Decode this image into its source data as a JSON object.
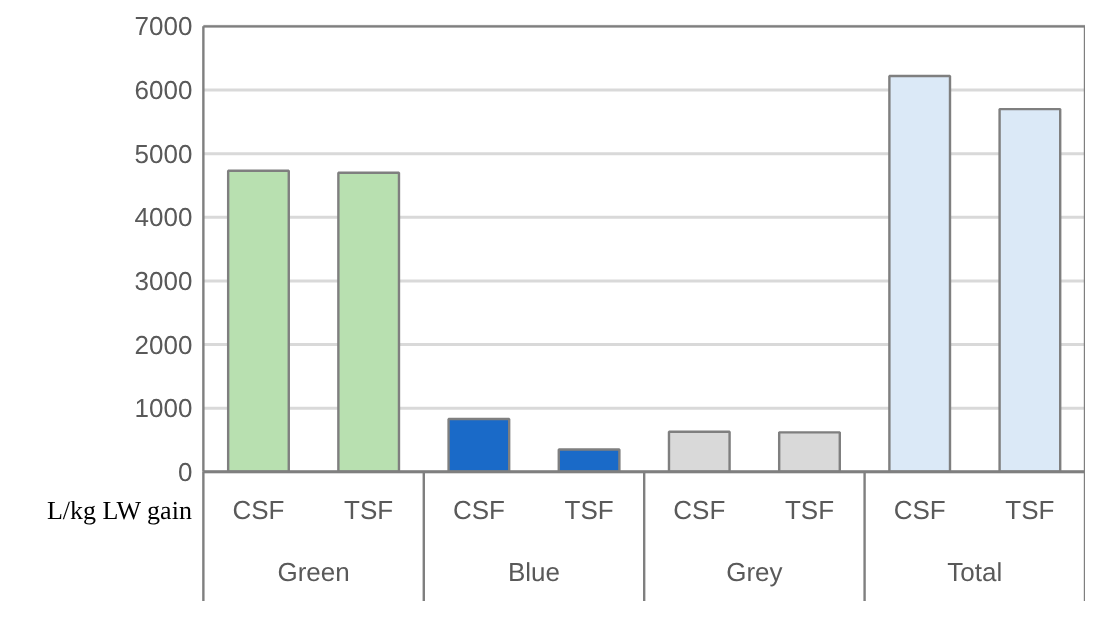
{
  "chart_data": {
    "type": "bar",
    "ylabel": "L/kg LW gain",
    "categories": [
      "CSF",
      "TSF",
      "CSF",
      "TSF",
      "CSF",
      "TSF",
      "CSF",
      "TSF"
    ],
    "values": [
      4730,
      4700,
      830,
      350,
      630,
      620,
      6220,
      5700
    ],
    "colors": [
      "#b8e0b0",
      "#b8e0b0",
      "#1a6ac8",
      "#1a6ac8",
      "#d9d9d9",
      "#d9d9d9",
      "#dbe9f7",
      "#dbe9f7"
    ],
    "annotations": [
      "Green",
      "Blue",
      "Grey",
      "Total"
    ],
    "ylim": [
      0,
      7000
    ],
    "yticks": [
      0,
      1000,
      2000,
      3000,
      4000,
      5000,
      6000,
      7000
    ],
    "grid": "y"
  }
}
